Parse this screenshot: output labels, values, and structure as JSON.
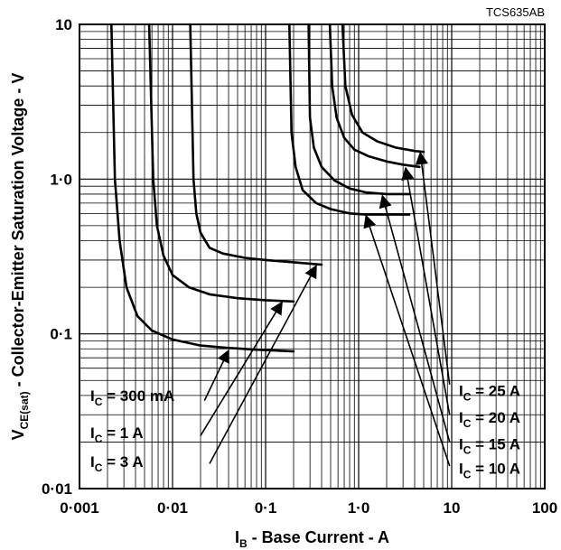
{
  "chart_data": {
    "type": "line",
    "code": "TCS635AB",
    "xlabel_symbol": "I",
    "xlabel_sub": "B",
    "xlabel_text": " - Base Current - A",
    "ylabel_symbol": "V",
    "ylabel_sub": "CE(sat)",
    "ylabel_text": " - Collector-Emitter Saturation Voltage - V",
    "x_scale": "log",
    "y_scale": "log",
    "xlim": [
      0.001,
      100
    ],
    "ylim": [
      0.01,
      10
    ],
    "grid": true,
    "x_ticks": [
      {
        "value": 0.001,
        "label": "0·001"
      },
      {
        "value": 0.01,
        "label": "0·01"
      },
      {
        "value": 0.1,
        "label": "0·1"
      },
      {
        "value": 1,
        "label": "1·0"
      },
      {
        "value": 10,
        "label": "10"
      },
      {
        "value": 100,
        "label": "100"
      }
    ],
    "y_ticks": [
      {
        "value": 0.01,
        "label": "0·01"
      },
      {
        "value": 0.1,
        "label": "0·1"
      },
      {
        "value": 1,
        "label": "1·0"
      },
      {
        "value": 10,
        "label": "10"
      }
    ],
    "series": [
      {
        "name": "I_C = 300 mA",
        "ann_symbol": "I",
        "ann_sub": "C",
        "ann_text": " = 300 mA",
        "ann_side": "left",
        "ann_y": 0.04,
        "points": [
          [
            0.0022,
            10
          ],
          [
            0.0024,
            1
          ],
          [
            0.0027,
            0.4
          ],
          [
            0.0032,
            0.2
          ],
          [
            0.0042,
            0.13
          ],
          [
            0.006,
            0.105
          ],
          [
            0.01,
            0.092
          ],
          [
            0.02,
            0.084
          ],
          [
            0.04,
            0.081
          ],
          [
            0.08,
            0.079
          ],
          [
            0.2,
            0.077
          ]
        ]
      },
      {
        "name": "I_C = 1 A",
        "ann_symbol": "I",
        "ann_sub": "C",
        "ann_text": " =      1 A",
        "ann_side": "left",
        "ann_y": 0.023,
        "points": [
          [
            0.0056,
            10
          ],
          [
            0.0062,
            1
          ],
          [
            0.0068,
            0.5
          ],
          [
            0.008,
            0.32
          ],
          [
            0.01,
            0.24
          ],
          [
            0.015,
            0.2
          ],
          [
            0.025,
            0.18
          ],
          [
            0.05,
            0.17
          ],
          [
            0.1,
            0.165
          ],
          [
            0.2,
            0.162
          ]
        ]
      },
      {
        "name": "I_C = 3 A",
        "ann_symbol": "I",
        "ann_sub": "C",
        "ann_text": " =      3 A",
        "ann_side": "left",
        "ann_y": 0.015,
        "points": [
          [
            0.0155,
            10
          ],
          [
            0.0168,
            1
          ],
          [
            0.018,
            0.6
          ],
          [
            0.02,
            0.45
          ],
          [
            0.025,
            0.36
          ],
          [
            0.035,
            0.33
          ],
          [
            0.06,
            0.31
          ],
          [
            0.1,
            0.3
          ],
          [
            0.2,
            0.29
          ],
          [
            0.4,
            0.28
          ]
        ]
      },
      {
        "name": "I_C = 10 A",
        "ann_symbol": "I",
        "ann_sub": "C",
        "ann_text": " = 10 A",
        "ann_side": "right",
        "ann_y": 0.0135,
        "points": [
          [
            0.18,
            10
          ],
          [
            0.19,
            2
          ],
          [
            0.21,
            1.2
          ],
          [
            0.25,
            0.85
          ],
          [
            0.35,
            0.7
          ],
          [
            0.5,
            0.64
          ],
          [
            0.8,
            0.6
          ],
          [
            1.2,
            0.59
          ],
          [
            2,
            0.59
          ],
          [
            3.5,
            0.59
          ]
        ]
      },
      {
        "name": "I_C = 15 A",
        "ann_symbol": "I",
        "ann_sub": "C",
        "ann_text": " = 15 A",
        "ann_side": "right",
        "ann_y": 0.0195,
        "points": [
          [
            0.29,
            10
          ],
          [
            0.3,
            2.5
          ],
          [
            0.33,
            1.6
          ],
          [
            0.4,
            1.2
          ],
          [
            0.55,
            0.98
          ],
          [
            0.8,
            0.87
          ],
          [
            1.2,
            0.82
          ],
          [
            2,
            0.8
          ],
          [
            3.5,
            0.8
          ]
        ]
      },
      {
        "name": "I_C = 20 A",
        "ann_symbol": "I",
        "ann_sub": "C",
        "ann_text": " = 20 A",
        "ann_side": "right",
        "ann_y": 0.029,
        "points": [
          [
            0.49,
            10
          ],
          [
            0.52,
            4
          ],
          [
            0.58,
            2.5
          ],
          [
            0.7,
            1.85
          ],
          [
            0.9,
            1.55
          ],
          [
            1.3,
            1.4
          ],
          [
            2,
            1.3
          ],
          [
            3,
            1.24
          ],
          [
            4.5,
            1.2
          ]
        ]
      },
      {
        "name": "I_C = 25 A",
        "ann_symbol": "I",
        "ann_sub": "C",
        "ann_text": " = 25 A",
        "ann_side": "right",
        "ann_y": 0.043,
        "points": [
          [
            0.67,
            10
          ],
          [
            0.72,
            4
          ],
          [
            0.85,
            2.6
          ],
          [
            1.1,
            2.0
          ],
          [
            1.6,
            1.75
          ],
          [
            2.5,
            1.6
          ],
          [
            4,
            1.52
          ],
          [
            5,
            1.5
          ]
        ]
      }
    ],
    "leaders": [
      {
        "series": 0,
        "from": [
          0.022,
          0.037
        ],
        "to": [
          0.04,
          0.078
        ]
      },
      {
        "series": 1,
        "from": [
          0.02,
          0.022
        ],
        "to": [
          0.15,
          0.16
        ]
      },
      {
        "series": 2,
        "from": [
          0.025,
          0.0145
        ],
        "to": [
          0.35,
          0.275
        ]
      },
      {
        "series": 3,
        "from": [
          9.5,
          0.014
        ],
        "to": [
          1.2,
          0.58
        ]
      },
      {
        "series": 4,
        "from": [
          9.5,
          0.02
        ],
        "to": [
          1.8,
          0.78
        ]
      },
      {
        "series": 5,
        "from": [
          9.5,
          0.03
        ],
        "to": [
          3.2,
          1.18
        ]
      },
      {
        "series": 6,
        "from": [
          9.5,
          0.047
        ],
        "to": [
          4.6,
          1.48
        ]
      }
    ]
  }
}
